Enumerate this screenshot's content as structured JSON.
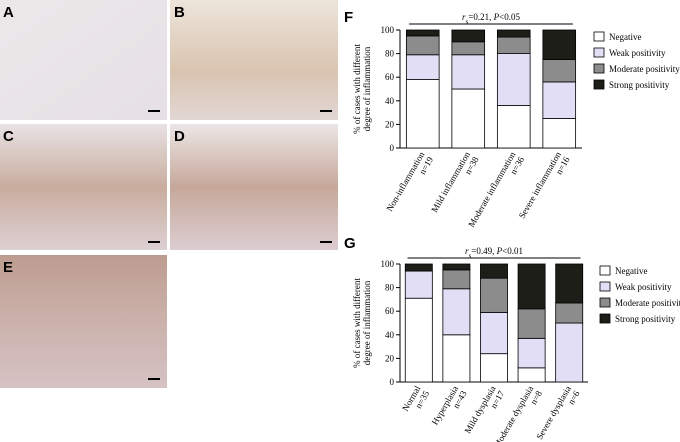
{
  "micrographs": {
    "labels": [
      "A",
      "B",
      "C",
      "D",
      "E"
    ]
  },
  "chart_data": [
    {
      "type": "stacked_bar",
      "panel": "F",
      "annotation": {
        "r": "r",
        "sub": "s",
        "mid": "=0.21, ",
        "p": "P",
        "tail": "<0.05"
      },
      "ylabel": [
        "% of cases with different",
        "degree of inflammation"
      ],
      "categories": [
        "Non-inflammation",
        "Mild inflammation",
        "Moderate inflammation",
        "Severe inflammation"
      ],
      "n_labels": [
        "n=19",
        "n=38",
        "n=36",
        "n=16"
      ],
      "ylim": [
        0,
        100
      ],
      "yticks": [
        0,
        20,
        40,
        60,
        80,
        100
      ],
      "series": [
        {
          "name": "Negative",
          "color": "#ffffff",
          "values": [
            58,
            50,
            36,
            25
          ]
        },
        {
          "name": "Weak positivity",
          "color": "#e2def6",
          "values": [
            21,
            29,
            44,
            31
          ]
        },
        {
          "name": "Moderate positivity",
          "color": "#8c8c8c",
          "values": [
            16,
            11,
            14,
            19
          ]
        },
        {
          "name": "Strong positivity",
          "color": "#1e1e18",
          "values": [
            5,
            10,
            6,
            25
          ]
        }
      ]
    },
    {
      "type": "stacked_bar",
      "panel": "G",
      "annotation": {
        "r": "r",
        "sub": "s",
        "mid": "=0.49, ",
        "p": "P",
        "tail": "<0.01"
      },
      "ylabel": [
        "% of cases with different",
        "degree of inflammation"
      ],
      "categories": [
        "Normal",
        "Hyperplasia",
        "Mild dysplasia",
        "Moderate dysplasia",
        "Severe dysplasia"
      ],
      "n_labels": [
        "n=35",
        "n=43",
        "n=17",
        "n=8",
        "n=6"
      ],
      "ylim": [
        0,
        100
      ],
      "yticks": [
        0,
        20,
        40,
        60,
        80,
        100
      ],
      "series": [
        {
          "name": "Negative",
          "color": "#ffffff",
          "values": [
            71,
            40,
            24,
            12,
            0
          ]
        },
        {
          "name": "Weak positivity",
          "color": "#e2def6",
          "values": [
            23,
            39,
            35,
            25,
            50
          ]
        },
        {
          "name": "Moderate positivity",
          "color": "#8c8c8c",
          "values": [
            0,
            16,
            29,
            25,
            17
          ]
        },
        {
          "name": "Strong positivity",
          "color": "#1e1e18",
          "values": [
            6,
            5,
            12,
            38,
            33
          ]
        }
      ]
    }
  ]
}
